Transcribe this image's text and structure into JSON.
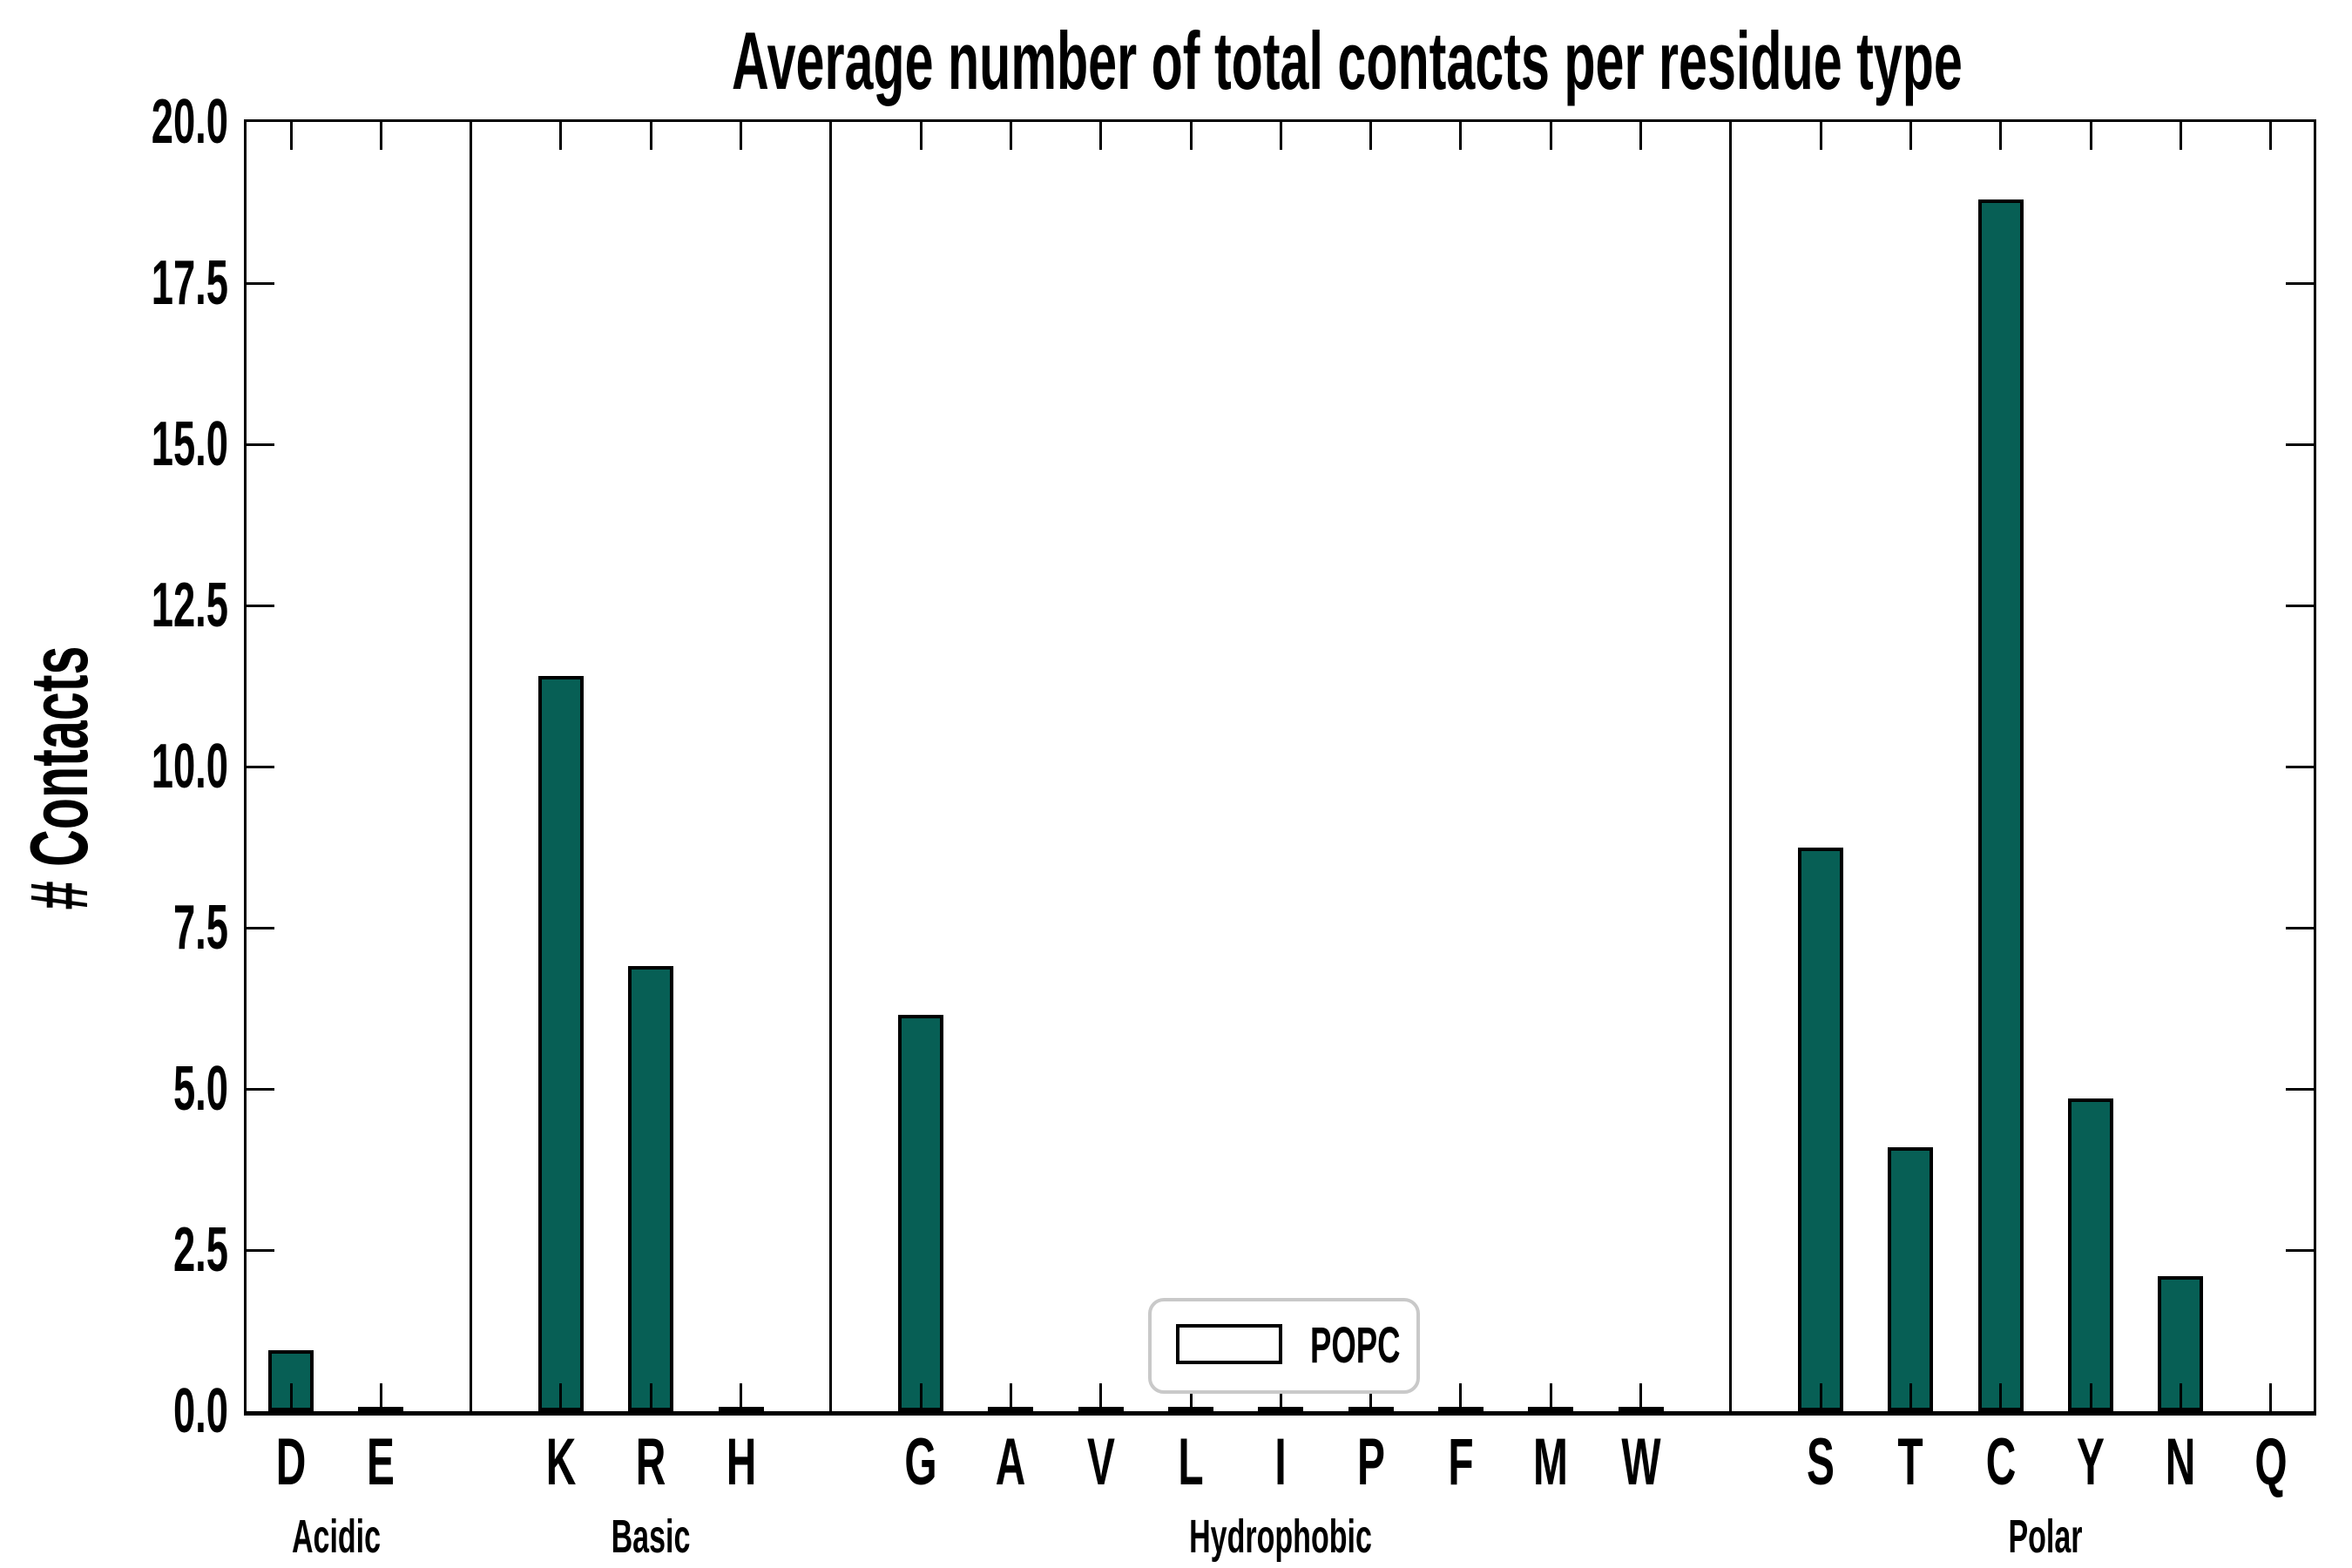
{
  "title": "Average number of total contacts per residue type",
  "ylabel": "# Contacts",
  "legend": {
    "label": "POPC"
  },
  "colors": {
    "bar_fill": "#075f55",
    "bar_edge": "#000000",
    "axis": "#000000",
    "legend_border": "#c9c9c9",
    "background": "#ffffff"
  },
  "chart_data": {
    "type": "bar",
    "title": "Average number of total contacts per residue type",
    "xlabel": "",
    "ylabel": "# Contacts",
    "ylim": [
      0,
      20
    ],
    "ytick_labels": [
      "0.0",
      "2.5",
      "5.0",
      "7.5",
      "10.0",
      "12.5",
      "15.0",
      "17.5",
      "20.0"
    ],
    "grid": false,
    "legend_position": "lower center",
    "categories": [
      "D",
      "E",
      "K",
      "R",
      "H",
      "G",
      "A",
      "V",
      "L",
      "I",
      "P",
      "F",
      "M",
      "W",
      "S",
      "T",
      "C",
      "Y",
      "N",
      "Q"
    ],
    "series": [
      {
        "name": "POPC",
        "values": [
          0.95,
          0.03,
          11.4,
          6.9,
          0.04,
          6.15,
          0.04,
          0.03,
          0.05,
          0.03,
          0.03,
          0.02,
          0.03,
          0.02,
          8.75,
          4.1,
          18.8,
          4.85,
          2.1,
          0.0
        ]
      }
    ],
    "groups": [
      {
        "label": "Acidic",
        "residues": [
          "D",
          "E"
        ]
      },
      {
        "label": "Basic",
        "residues": [
          "K",
          "R",
          "H"
        ]
      },
      {
        "label": "Hydrophobic",
        "residues": [
          "G",
          "A",
          "V",
          "L",
          "I",
          "P",
          "F",
          "M",
          "W"
        ]
      },
      {
        "label": "Polar",
        "residues": [
          "S",
          "T",
          "C",
          "Y",
          "N",
          "Q"
        ]
      }
    ]
  }
}
